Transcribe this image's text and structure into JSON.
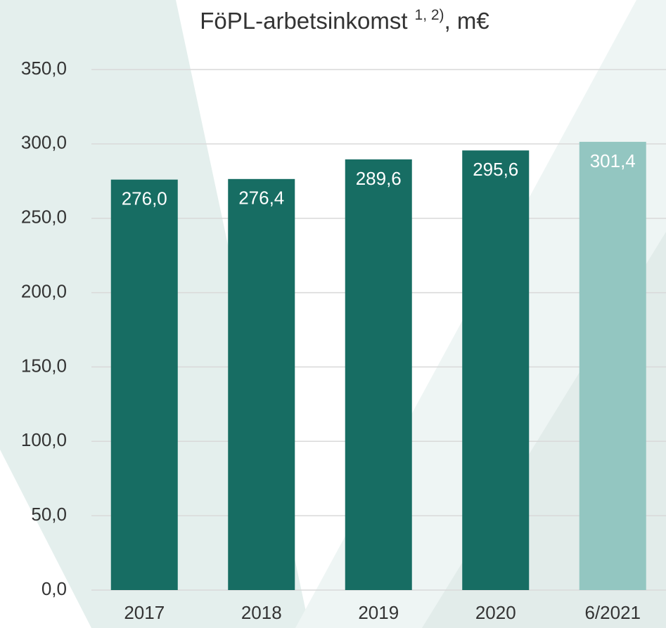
{
  "chart_data": {
    "type": "bar",
    "title_parts": [
      "FöPL-arbetsinkomst",
      "1, 2)",
      ", m€"
    ],
    "categories": [
      "2017",
      "2018",
      "2019",
      "2020",
      "6/2021"
    ],
    "values": [
      276.0,
      276.4,
      289.6,
      295.6,
      301.4
    ],
    "value_labels": [
      "276,0",
      "276,4",
      "289,6",
      "295,6",
      "301,4"
    ],
    "colors": [
      "#176d63",
      "#176d63",
      "#176d63",
      "#176d63",
      "#93c6c1"
    ],
    "ylim": [
      0,
      350
    ],
    "yticks": [
      {
        "value": 0,
        "label": "0,0"
      },
      {
        "value": 50,
        "label": "50,0"
      },
      {
        "value": 100,
        "label": "100,0"
      },
      {
        "value": 150,
        "label": "150,0"
      },
      {
        "value": 200,
        "label": "200,0"
      },
      {
        "value": 250,
        "label": "250,0"
      },
      {
        "value": 300,
        "label": "300,0"
      },
      {
        "value": 350,
        "label": "350,0"
      }
    ],
    "grid": true
  }
}
